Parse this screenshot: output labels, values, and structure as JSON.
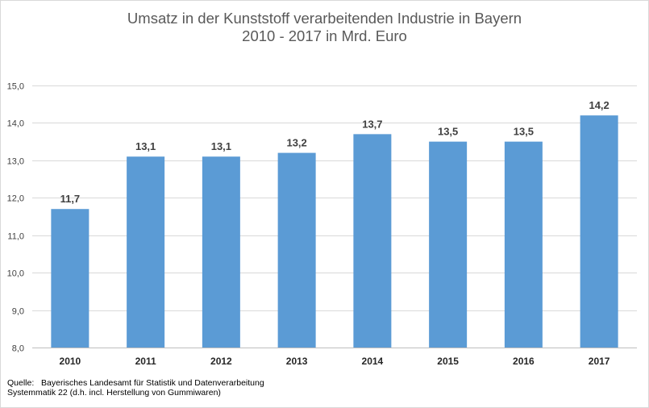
{
  "chart_data": {
    "type": "bar",
    "title": "Umsatz in der Kunststoff verarbeitenden Industrie in Bayern",
    "subtitle": "2010 - 2017 in Mrd. Euro",
    "categories": [
      "2010",
      "2011",
      "2012",
      "2013",
      "2014",
      "2015",
      "2016",
      "2017"
    ],
    "values": [
      11.7,
      13.1,
      13.1,
      13.2,
      13.7,
      13.5,
      13.5,
      14.2
    ],
    "data_labels": [
      "11,7",
      "13,1",
      "13,1",
      "13,2",
      "13,7",
      "13,5",
      "13,5",
      "14,2"
    ],
    "ylim": [
      8.0,
      15.0
    ],
    "y_ticks": [
      8.0,
      9.0,
      10.0,
      11.0,
      12.0,
      13.0,
      14.0,
      15.0
    ],
    "y_tick_labels": [
      "8,0",
      "9,0",
      "10,0",
      "11,0",
      "12,0",
      "13,0",
      "14,0",
      "15,0"
    ],
    "xlabel": "",
    "ylabel": "",
    "grid": true,
    "legend": "none",
    "bar_color": "#5b9bd5"
  },
  "source": {
    "line1": "Quelle:   Bayerisches Landesamt für Statistik und Datenverarbeitung",
    "line2": "Systemmatik 22 (d.h. incl. Herstellung von Gummiwaren)"
  }
}
